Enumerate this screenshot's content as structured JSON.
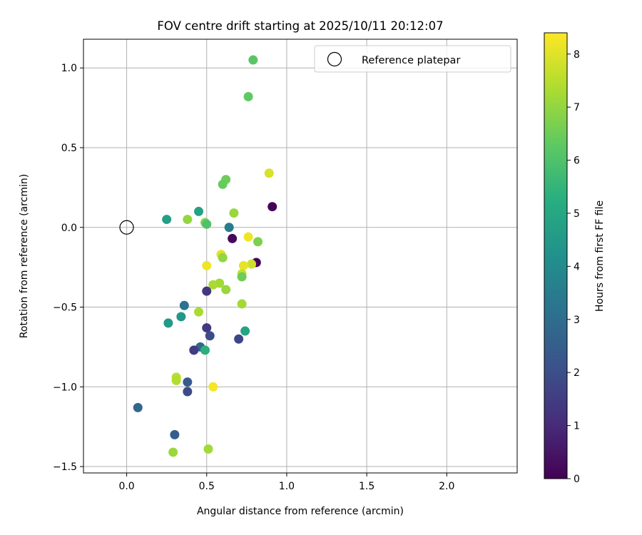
{
  "chart_data": {
    "type": "scatter",
    "title": "FOV centre drift starting at 2025/10/11 20:12:07",
    "xlabel": "Angular distance from reference (arcmin)",
    "ylabel": "Rotation from reference (arcmin)",
    "xlim": [
      -0.27,
      2.44
    ],
    "ylim": [
      -1.54,
      1.18
    ],
    "grid": true,
    "x_ticks": [
      {
        "value": 0.0,
        "label": "0.0"
      },
      {
        "value": 0.5,
        "label": "0.5"
      },
      {
        "value": 1.0,
        "label": "1.0"
      },
      {
        "value": 1.5,
        "label": "1.5"
      },
      {
        "value": 2.0,
        "label": "2.0"
      }
    ],
    "y_ticks": [
      {
        "value": 1.0,
        "label": "1.0"
      },
      {
        "value": 0.5,
        "label": "0.5"
      },
      {
        "value": 0.0,
        "label": "0.0"
      },
      {
        "value": -0.5,
        "label": "−0.5"
      },
      {
        "value": -1.0,
        "label": "−1.0"
      },
      {
        "value": -1.5,
        "label": "−1.5"
      }
    ],
    "legend": {
      "position": "top-right",
      "label": "Reference platepar"
    },
    "reference_point": {
      "x": 0.0,
      "y": 0.0
    },
    "colorbar": {
      "label": "Hours from first FF file",
      "range": [
        0,
        8.4
      ],
      "ticks": [
        {
          "value": 0,
          "label": "0"
        },
        {
          "value": 1,
          "label": "1"
        },
        {
          "value": 2,
          "label": "2"
        },
        {
          "value": 3,
          "label": "3"
        },
        {
          "value": 4,
          "label": "4"
        },
        {
          "value": 5,
          "label": "5"
        },
        {
          "value": 6,
          "label": "6"
        },
        {
          "value": 7,
          "label": "7"
        },
        {
          "value": 8,
          "label": "8"
        }
      ]
    },
    "points": [
      {
        "x": 0.79,
        "y": 1.05,
        "h": 6.2
      },
      {
        "x": 0.76,
        "y": 0.82,
        "h": 6.3
      },
      {
        "x": 0.89,
        "y": 0.34,
        "h": 7.9
      },
      {
        "x": 0.62,
        "y": 0.3,
        "h": 6.5
      },
      {
        "x": 0.6,
        "y": 0.27,
        "h": 6.4
      },
      {
        "x": 0.91,
        "y": 0.13,
        "h": 0.1
      },
      {
        "x": 0.45,
        "y": 0.1,
        "h": 4.8
      },
      {
        "x": 0.67,
        "y": 0.09,
        "h": 7.1
      },
      {
        "x": 0.25,
        "y": 0.05,
        "h": 4.7
      },
      {
        "x": 0.38,
        "y": 0.05,
        "h": 7.0
      },
      {
        "x": 0.49,
        "y": 0.03,
        "h": 6.8
      },
      {
        "x": 0.5,
        "y": 0.02,
        "h": 6.0
      },
      {
        "x": 0.64,
        "y": 0.0,
        "h": 3.5
      },
      {
        "x": 0.66,
        "y": -0.07,
        "h": 0.2
      },
      {
        "x": 0.76,
        "y": -0.06,
        "h": 8.2
      },
      {
        "x": 0.82,
        "y": -0.09,
        "h": 6.7
      },
      {
        "x": 0.59,
        "y": -0.17,
        "h": 8.0
      },
      {
        "x": 0.6,
        "y": -0.19,
        "h": 7.0
      },
      {
        "x": 0.81,
        "y": -0.22,
        "h": 0.1
      },
      {
        "x": 0.78,
        "y": -0.23,
        "h": 7.8
      },
      {
        "x": 0.73,
        "y": -0.24,
        "h": 8.1
      },
      {
        "x": 0.5,
        "y": -0.24,
        "h": 8.2
      },
      {
        "x": 0.72,
        "y": -0.29,
        "h": 7.7
      },
      {
        "x": 0.72,
        "y": -0.31,
        "h": 6.5
      },
      {
        "x": 0.58,
        "y": -0.35,
        "h": 7.2
      },
      {
        "x": 0.54,
        "y": -0.36,
        "h": 7.3
      },
      {
        "x": 0.62,
        "y": -0.39,
        "h": 7.1
      },
      {
        "x": 0.5,
        "y": -0.4,
        "h": 1.3
      },
      {
        "x": 0.72,
        "y": -0.48,
        "h": 7.2
      },
      {
        "x": 0.36,
        "y": -0.49,
        "h": 3.2
      },
      {
        "x": 0.45,
        "y": -0.53,
        "h": 7.3
      },
      {
        "x": 0.34,
        "y": -0.56,
        "h": 4.4
      },
      {
        "x": 0.26,
        "y": -0.6,
        "h": 4.5
      },
      {
        "x": 0.5,
        "y": -0.63,
        "h": 1.4
      },
      {
        "x": 0.74,
        "y": -0.65,
        "h": 4.9
      },
      {
        "x": 0.52,
        "y": -0.68,
        "h": 1.9
      },
      {
        "x": 0.7,
        "y": -0.7,
        "h": 1.8
      },
      {
        "x": 0.46,
        "y": -0.75,
        "h": 2.8
      },
      {
        "x": 0.42,
        "y": -0.77,
        "h": 1.5
      },
      {
        "x": 0.49,
        "y": -0.77,
        "h": 5.3
      },
      {
        "x": 0.31,
        "y": -0.94,
        "h": 7.5
      },
      {
        "x": 0.31,
        "y": -0.96,
        "h": 7.4
      },
      {
        "x": 0.38,
        "y": -0.97,
        "h": 2.4
      },
      {
        "x": 0.54,
        "y": -1.0,
        "h": 8.3
      },
      {
        "x": 0.38,
        "y": -1.03,
        "h": 1.9
      },
      {
        "x": 0.07,
        "y": -1.13,
        "h": 2.8
      },
      {
        "x": 0.3,
        "y": -1.3,
        "h": 2.5
      },
      {
        "x": 0.51,
        "y": -1.39,
        "h": 7.2
      },
      {
        "x": 0.29,
        "y": -1.41,
        "h": 7.1
      }
    ]
  }
}
